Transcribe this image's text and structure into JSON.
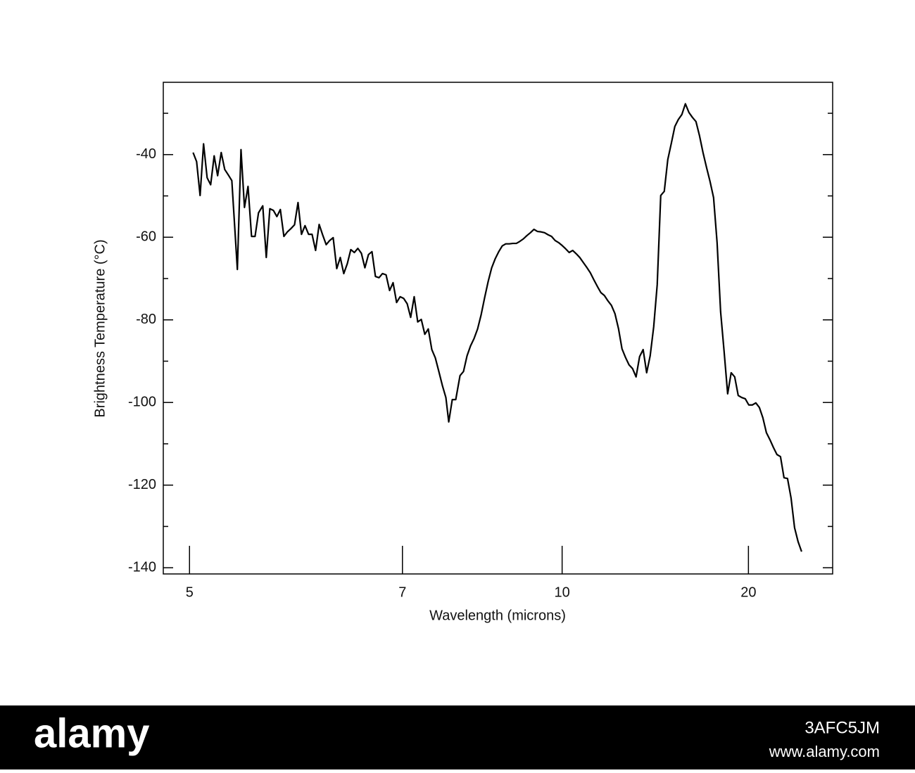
{
  "chart_data": {
    "type": "line",
    "xlabel": "Wavelength (microns)",
    "ylabel": "Brightness Temperature (°C)",
    "xscale": "reciprocal",
    "xlim": [
      4.83,
      36.5
    ],
    "xticks": [
      5,
      7,
      10,
      20
    ],
    "ylim": [
      -141.5,
      -22.5
    ],
    "yticks": [
      -40,
      -60,
      -80,
      -100,
      -120,
      -140
    ],
    "yticks_minor": [
      -30,
      -50,
      -70,
      -90,
      -110,
      -130
    ],
    "grid": false,
    "series": [
      {
        "color": "#000000",
        "x": [
          5.024,
          5.048,
          5.072,
          5.096,
          5.121,
          5.146,
          5.171,
          5.196,
          5.222,
          5.248,
          5.274,
          5.301,
          5.343,
          5.371,
          5.398,
          5.426,
          5.454,
          5.482,
          5.51,
          5.545,
          5.574,
          5.604,
          5.634,
          5.664,
          5.694,
          5.725,
          5.756,
          5.788,
          5.82,
          5.852,
          5.884,
          5.917,
          5.951,
          5.984,
          6.018,
          6.053,
          6.087,
          6.123,
          6.158,
          6.194,
          6.231,
          6.268,
          6.305,
          6.343,
          6.381,
          6.42,
          6.459,
          6.499,
          6.539,
          6.58,
          6.621,
          6.662,
          6.705,
          6.747,
          6.791,
          6.835,
          6.879,
          6.924,
          6.97,
          7.016,
          7.063,
          7.11,
          7.158,
          7.207,
          7.257,
          7.307,
          7.357,
          7.409,
          7.461,
          7.514,
          7.568,
          7.622,
          7.667,
          7.723,
          7.779,
          7.849,
          7.907,
          7.967,
          8.027,
          8.089,
          8.151,
          8.214,
          8.279,
          8.344,
          8.41,
          8.478,
          8.546,
          8.616,
          8.686,
          8.758,
          8.831,
          8.906,
          8.981,
          9.058,
          9.136,
          9.216,
          9.297,
          9.379,
          9.463,
          9.549,
          9.636,
          9.724,
          9.815,
          9.906,
          10.0,
          10.095,
          10.193,
          10.292,
          10.393,
          10.496,
          10.601,
          10.708,
          10.818,
          10.93,
          11.044,
          11.16,
          11.279,
          11.401,
          11.525,
          11.652,
          11.782,
          11.914,
          12.05,
          12.189,
          12.331,
          12.476,
          12.625,
          12.778,
          12.934,
          13.094,
          13.258,
          13.426,
          13.599,
          13.776,
          13.958,
          14.144,
          14.336,
          14.533,
          14.735,
          14.943,
          15.158,
          15.378,
          15.605,
          15.838,
          16.079,
          16.327,
          16.583,
          16.847,
          17.12,
          17.401,
          17.692,
          17.993,
          18.305,
          18.627,
          18.96,
          19.306,
          19.665,
          20.038,
          20.425,
          20.827,
          21.245,
          21.68,
          22.134,
          22.607,
          23.101,
          23.616,
          24.155,
          24.719,
          25.311,
          25.932,
          26.583,
          27.268,
          27.989
        ],
        "values": [
          -39.5,
          -41.7,
          -49.9,
          -37.4,
          -45.6,
          -47.3,
          -40.3,
          -45.1,
          -39.5,
          -43.6,
          -44.9,
          -46.3,
          -67.8,
          -38.8,
          -52.8,
          -47.7,
          -59.8,
          -59.8,
          -54.1,
          -52.4,
          -64.9,
          -53.1,
          -53.5,
          -55.0,
          -53.3,
          -59.8,
          -58.7,
          -57.9,
          -57.0,
          -51.6,
          -59.3,
          -57.2,
          -59.3,
          -59.3,
          -63.2,
          -56.9,
          -59.4,
          -61.8,
          -60.8,
          -60.1,
          -67.6,
          -64.9,
          -68.8,
          -66.4,
          -63.0,
          -63.7,
          -62.7,
          -63.9,
          -67.4,
          -64.2,
          -63.5,
          -69.5,
          -69.8,
          -68.8,
          -69.1,
          -72.9,
          -71.0,
          -75.8,
          -74.4,
          -74.8,
          -76.1,
          -79.4,
          -74.4,
          -80.5,
          -79.9,
          -83.5,
          -82.2,
          -87.2,
          -89.2,
          -92.5,
          -95.9,
          -98.8,
          -104.7,
          -99.3,
          -99.3,
          -93.5,
          -92.5,
          -88.7,
          -86.3,
          -84.5,
          -82.2,
          -78.8,
          -74.6,
          -70.7,
          -67.4,
          -65.2,
          -63.5,
          -62.1,
          -61.6,
          -61.6,
          -61.5,
          -61.5,
          -61.0,
          -60.4,
          -59.6,
          -58.9,
          -58.1,
          -58.6,
          -58.7,
          -58.9,
          -59.4,
          -59.8,
          -60.8,
          -61.3,
          -62.0,
          -62.8,
          -63.7,
          -63.2,
          -64.0,
          -64.9,
          -66.1,
          -67.3,
          -68.6,
          -70.3,
          -71.9,
          -73.4,
          -74.1,
          -75.4,
          -76.5,
          -78.5,
          -82.1,
          -87.0,
          -89.1,
          -90.9,
          -91.8,
          -93.8,
          -88.9,
          -87.2,
          -92.8,
          -88.7,
          -81.7,
          -71.5,
          -49.9,
          -48.9,
          -41.2,
          -37.3,
          -33.2,
          -31.5,
          -30.3,
          -27.7,
          -29.8,
          -31.0,
          -32.0,
          -35.4,
          -39.5,
          -43.1,
          -46.5,
          -50.4,
          -61.3,
          -78.0,
          -87.7,
          -97.9,
          -92.8,
          -93.8,
          -98.3,
          -98.8,
          -99.1,
          -100.6,
          -100.6,
          -100.1,
          -101.2,
          -103.7,
          -107.3,
          -109.0,
          -110.9,
          -112.6,
          -113.1,
          -118.2,
          -118.4,
          -123.1,
          -130.3,
          -133.7,
          -136.1
        ]
      }
    ]
  },
  "watermark": {
    "brand": "alamy",
    "image_id": "3AFC5JM",
    "url": "www.alamy.com"
  }
}
